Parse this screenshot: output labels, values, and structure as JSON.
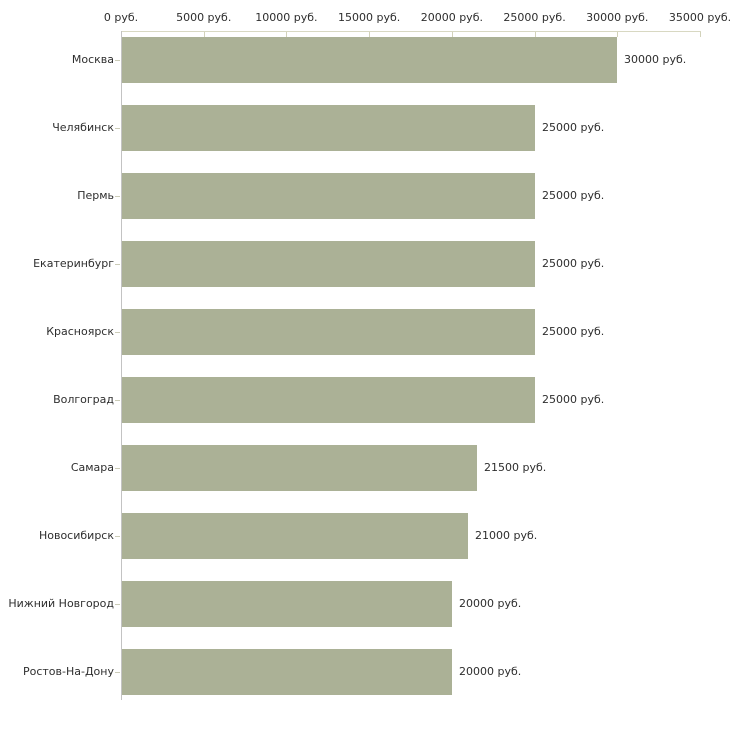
{
  "chart_data": {
    "type": "bar",
    "orientation": "horizontal",
    "title": "",
    "categories": [
      "Москва",
      "Челябинск",
      "Пермь",
      "Екатеринбург",
      "Красноярск",
      "Волгоград",
      "Самара",
      "Новосибирск",
      "Нижний Новгород",
      "Ростов-На-Дону"
    ],
    "values": [
      30000,
      25000,
      25000,
      25000,
      25000,
      25000,
      21500,
      21000,
      20000,
      20000
    ],
    "value_labels": [
      "30000 руб.",
      "25000 руб.",
      "25000 руб.",
      "25000 руб.",
      "25000 руб.",
      "25000 руб.",
      "21500 руб.",
      "21000 руб.",
      "20000 руб.",
      "20000 руб."
    ],
    "x_axis": {
      "position": "top",
      "range": [
        0,
        35000
      ],
      "ticks": [
        0,
        5000,
        10000,
        15000,
        20000,
        25000,
        30000,
        35000
      ],
      "tick_labels": [
        "0 руб.",
        "5000 руб.",
        "10000 руб.",
        "15000 руб.",
        "20000 руб.",
        "25000 руб.",
        "30000 руб.",
        "35000 руб."
      ]
    },
    "grid": false,
    "legend": false,
    "colors": {
      "bar_fill": "#abb196",
      "x_axis_line": "#d8d8c2",
      "x_tick_mark": "#d2d2ba",
      "y_axis_line": "#c3c3c3",
      "category_tick": "#ccccb8",
      "text": "#2e2e2e",
      "background": "#ffffff"
    }
  }
}
